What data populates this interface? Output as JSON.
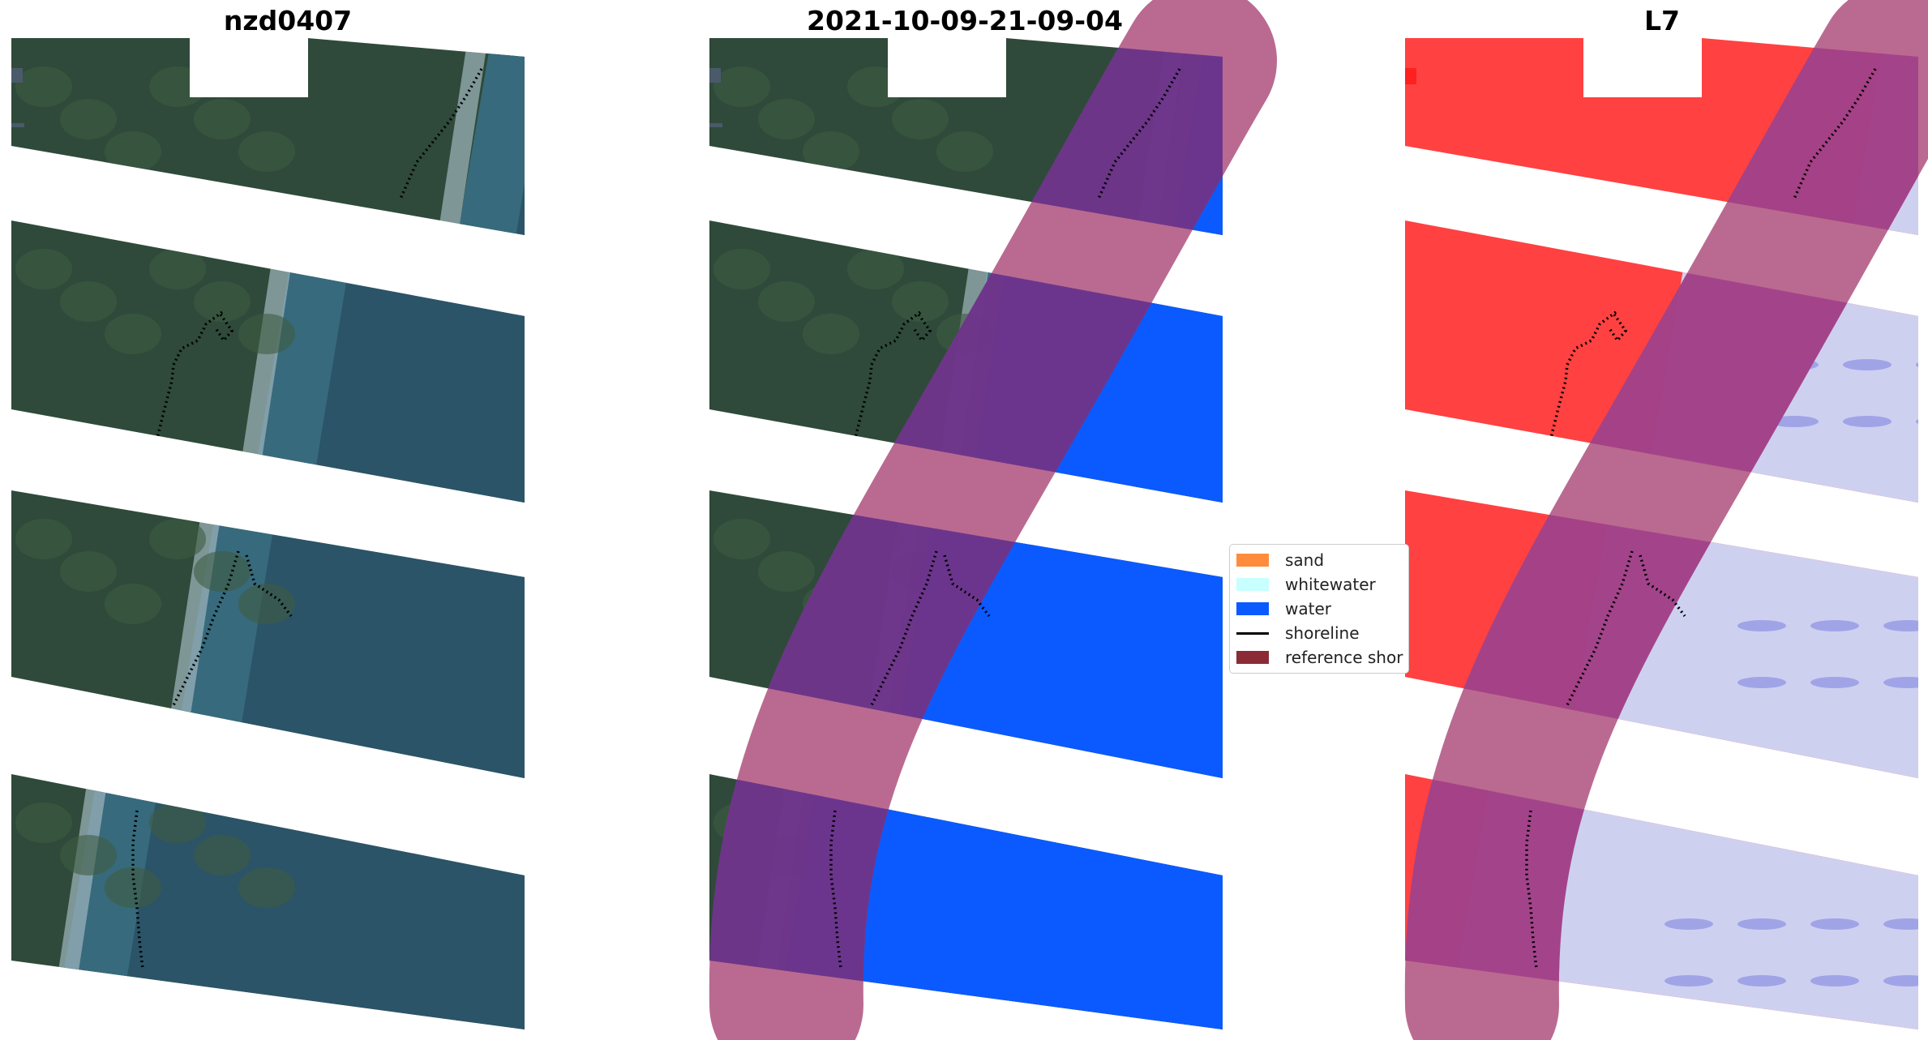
{
  "panels": [
    {
      "title": "nzd0407",
      "kind": "rgb"
    },
    {
      "title": "2021-10-09-21-09-04",
      "kind": "classified"
    },
    {
      "title": "L7",
      "kind": "index"
    }
  ],
  "legend": {
    "items": [
      {
        "label": "sand",
        "color": "#ff8c3c",
        "icon": "swatch"
      },
      {
        "label": "whitewater",
        "color": "#c8ffff",
        "icon": "swatch"
      },
      {
        "label": "water",
        "color": "#0a5aff",
        "icon": "swatch"
      },
      {
        "label": "shoreline",
        "color": "#000000",
        "icon": "line"
      },
      {
        "label": "reference shor",
        "color": "#8b2b35",
        "icon": "swatch"
      }
    ]
  },
  "colors": {
    "land_dark": "#2f4a3a",
    "land_mid": "#3d5c42",
    "sea": "#2b5468",
    "sea_light": "#3f7a8a",
    "surf": "#9fb6bd",
    "water_class": "#0a5aff",
    "reference_buffer": "#b35a84",
    "reference_overlap": "#7a1e3a",
    "index_land": "#ff2020",
    "index_water": "#c6c8ee",
    "index_overlap": "#b81e48"
  }
}
